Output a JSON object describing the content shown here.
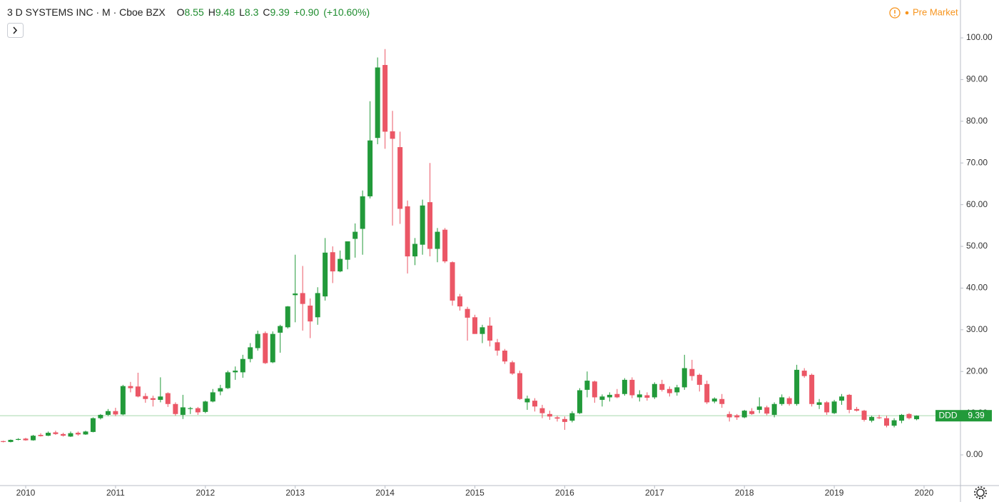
{
  "chart_data": {
    "type": "candlestick",
    "title": "3 D SYSTEMS INC · M · Cboe BZX",
    "ohlc_labels": [
      "O",
      "H",
      "L",
      "C"
    ],
    "change": "+0.90",
    "change_pct": "(+10.60%)",
    "session": "Pre Market",
    "symbol_label": "DDD",
    "up_color": "#229a3a",
    "down_color": "#eb5766",
    "last_line_color": "#a8d8ad",
    "x": [
      2009.75,
      2009.833,
      2009.917,
      2010,
      2010.083,
      2010.167,
      2010.25,
      2010.333,
      2010.417,
      2010.5,
      2010.583,
      2010.667,
      2010.75,
      2010.833,
      2010.917,
      2011,
      2011.083,
      2011.167,
      2011.25,
      2011.333,
      2011.417,
      2011.5,
      2011.583,
      2011.667,
      2011.75,
      2011.833,
      2011.917,
      2012,
      2012.083,
      2012.167,
      2012.25,
      2012.333,
      2012.417,
      2012.5,
      2012.583,
      2012.667,
      2012.75,
      2012.833,
      2012.917,
      2013,
      2013.083,
      2013.167,
      2013.25,
      2013.333,
      2013.417,
      2013.5,
      2013.583,
      2013.667,
      2013.75,
      2013.833,
      2013.917,
      2014,
      2014.083,
      2014.167,
      2014.25,
      2014.333,
      2014.417,
      2014.5,
      2014.583,
      2014.667,
      2014.75,
      2014.833,
      2014.917,
      2015,
      2015.083,
      2015.167,
      2015.25,
      2015.333,
      2015.417,
      2015.5,
      2015.583,
      2015.667,
      2015.75,
      2015.833,
      2015.917,
      2016,
      2016.083,
      2016.167,
      2016.25,
      2016.333,
      2016.417,
      2016.5,
      2016.583,
      2016.667,
      2016.75,
      2016.833,
      2016.917,
      2017,
      2017.083,
      2017.167,
      2017.25,
      2017.333,
      2017.417,
      2017.5,
      2017.583,
      2017.667,
      2017.75,
      2017.833,
      2017.917,
      2018,
      2018.083,
      2018.167,
      2018.25,
      2018.333,
      2018.417,
      2018.5,
      2018.583,
      2018.667,
      2018.75,
      2018.833,
      2018.917,
      2019,
      2019.083,
      2019.167,
      2019.25,
      2019.333,
      2019.417,
      2019.5,
      2019.583,
      2019.667,
      2019.75,
      2019.833,
      2019.917
    ],
    "open": [
      3.3,
      3.1,
      3.6,
      3.9,
      3.5,
      4.8,
      4.6,
      5.4,
      5.0,
      4.4,
      5.3,
      4.9,
      5.5,
      8.8,
      9.6,
      10.5,
      9.7,
      16.5,
      16.4,
      14.1,
      13.6,
      13.2,
      14.8,
      12.2,
      9.6,
      11.0,
      11.2,
      10.3,
      12.8,
      15.2,
      16.0,
      19.8,
      19.8,
      23.0,
      25.6,
      29.2,
      22.2,
      29.3,
      30.6,
      38.3,
      38.8,
      35.8,
      33.0,
      38.0,
      48.6,
      44.0,
      46.8,
      51.8,
      54.2,
      62.0,
      76.0,
      93.5,
      77.6,
      73.8,
      59.6,
      47.6,
      50.4,
      60.6,
      49.4,
      54.0,
      46.2,
      38.0,
      35.0,
      33.0,
      29.0,
      31.0,
      27.0,
      25.0,
      22.2,
      19.6,
      12.6,
      13.0,
      11.2,
      9.8,
      9.0,
      8.6,
      8.2,
      10.0,
      15.6,
      17.6,
      13.2,
      13.8,
      14.6,
      14.6,
      18.0,
      13.8,
      14.3,
      13.8,
      17.0,
      15.8,
      15.0,
      16.2,
      20.6,
      19.2,
      17.0,
      12.8,
      13.4,
      9.8,
      9.5,
      9.0,
      10.5,
      10.8,
      11.4,
      9.6,
      12.2,
      13.6,
      12.2,
      20.2,
      19.2,
      12.0,
      12.6,
      10.0,
      13.0,
      14.4,
      11.0,
      10.6,
      8.2,
      9.0,
      8.8,
      7.0,
      8.2,
      9.8,
      8.55
    ],
    "high": [
      3.4,
      3.7,
      4.0,
      4.1,
      4.8,
      5.2,
      5.6,
      5.8,
      5.3,
      5.6,
      5.6,
      5.8,
      9.0,
      9.8,
      11.0,
      11.3,
      16.8,
      17.5,
      19.7,
      14.8,
      14.2,
      18.6,
      15.0,
      12.6,
      14.4,
      11.5,
      11.5,
      13.0,
      15.8,
      16.8,
      20.2,
      21.2,
      24.0,
      26.8,
      29.8,
      29.6,
      29.6,
      31.2,
      35.7,
      48.0,
      45.3,
      37.5,
      40.2,
      52.0,
      50.0,
      49.0,
      51.2,
      55.5,
      63.4,
      84.8,
      95.3,
      97.3,
      82.5,
      77.5,
      61.0,
      52.0,
      61.2,
      70.0,
      54.4,
      54.4,
      46.4,
      38.6,
      35.5,
      33.6,
      31.2,
      33.0,
      27.8,
      25.4,
      22.6,
      20.2,
      14.2,
      13.6,
      12.0,
      10.6,
      9.4,
      9.2,
      10.5,
      16.0,
      20.0,
      17.8,
      14.5,
      15.0,
      15.8,
      18.4,
      18.6,
      15.5,
      15.0,
      17.4,
      18.0,
      16.4,
      16.8,
      24.0,
      22.8,
      19.5,
      17.8,
      13.8,
      14.6,
      10.4,
      9.8,
      10.8,
      11.2,
      13.8,
      11.8,
      12.6,
      14.5,
      14.0,
      21.6,
      20.8,
      19.5,
      13.4,
      12.9,
      13.2,
      14.6,
      14.6,
      11.5,
      10.8,
      9.4,
      9.6,
      9.4,
      8.8,
      9.8,
      10.0,
      9.48
    ],
    "low": [
      3.0,
      3.0,
      3.5,
      3.4,
      3.4,
      4.4,
      4.5,
      4.8,
      4.4,
      4.3,
      4.6,
      4.8,
      5.4,
      8.5,
      9.3,
      9.3,
      9.5,
      15.0,
      13.8,
      12.5,
      11.6,
      12.6,
      11.5,
      9.4,
      8.6,
      9.8,
      9.6,
      10.0,
      12.6,
      14.3,
      15.8,
      18.0,
      18.5,
      22.2,
      25.0,
      21.8,
      22.0,
      24.5,
      30.3,
      31.8,
      29.8,
      28.0,
      31.2,
      37.0,
      41.2,
      43.8,
      44.5,
      47.3,
      48.0,
      61.5,
      74.5,
      73.4,
      55.0,
      55.4,
      43.5,
      45.5,
      48.0,
      47.6,
      46.2,
      46.0,
      35.8,
      34.6,
      27.4,
      29.0,
      26.8,
      26.0,
      23.8,
      21.8,
      19.2,
      13.2,
      10.8,
      10.4,
      8.8,
      8.4,
      8.0,
      6.0,
      7.8,
      9.8,
      13.8,
      12.5,
      11.6,
      12.8,
      13.6,
      14.2,
      13.6,
      12.8,
      13.0,
      13.4,
      15.2,
      14.0,
      14.2,
      15.6,
      17.8,
      15.2,
      12.2,
      12.4,
      11.3,
      8.0,
      8.4,
      8.8,
      9.6,
      10.0,
      9.5,
      9.0,
      11.8,
      11.8,
      11.8,
      18.5,
      11.6,
      11.0,
      9.6,
      9.8,
      12.0,
      10.0,
      10.4,
      8.0,
      7.8,
      8.6,
      6.6,
      6.6,
      7.6,
      8.5,
      8.3
    ],
    "close": [
      3.1,
      3.6,
      3.8,
      3.5,
      4.6,
      4.5,
      5.3,
      5.0,
      4.6,
      5.2,
      4.9,
      5.6,
      8.8,
      9.6,
      10.5,
      9.7,
      16.5,
      16.0,
      14.0,
      13.4,
      13.2,
      14.0,
      12.2,
      9.8,
      11.4,
      11.2,
      10.2,
      12.8,
      15.0,
      16.0,
      19.8,
      20.2,
      23.0,
      25.8,
      29.0,
      22.0,
      29.0,
      30.9,
      35.6,
      38.7,
      36.2,
      32.0,
      38.8,
      48.5,
      44.0,
      47.0,
      51.2,
      53.5,
      62.0,
      75.4,
      92.9,
      77.5,
      75.8,
      59.0,
      47.6,
      50.6,
      59.8,
      49.4,
      53.5,
      46.4,
      37.0,
      35.6,
      32.9,
      29.0,
      30.6,
      27.4,
      25.0,
      22.4,
      19.5,
      13.4,
      13.5,
      11.6,
      10.0,
      9.2,
      8.7,
      7.9,
      10.0,
      15.5,
      17.8,
      13.8,
      14.0,
      14.4,
      13.8,
      18.0,
      14.3,
      14.5,
      13.7,
      17.0,
      15.6,
      14.8,
      16.2,
      20.8,
      18.9,
      16.8,
      12.6,
      13.5,
      12.2,
      9.0,
      9.0,
      10.6,
      9.8,
      11.6,
      9.9,
      12.2,
      13.8,
      12.2,
      20.4,
      18.9,
      12.2,
      12.6,
      10.2,
      12.8,
      14.0,
      10.8,
      10.6,
      8.4,
      9.1,
      8.8,
      7.0,
      8.3,
      9.6,
      8.8,
      9.39
    ],
    "xlim": [
      2009.714,
      2020.405
    ],
    "xticks": [
      2010,
      2011,
      2012,
      2013,
      2014,
      2015,
      2016,
      2017,
      2018,
      2019,
      2020
    ],
    "ylim": [
      -7.36,
      109.08
    ],
    "yticks": [
      {
        "value": 0,
        "label": "0.00"
      },
      {
        "value": 10,
        "label": "10.00"
      },
      {
        "value": 20,
        "label": "20.00"
      },
      {
        "value": 30,
        "label": "30.00"
      },
      {
        "value": 40,
        "label": "40.00"
      },
      {
        "value": 50,
        "label": "50.00"
      },
      {
        "value": 60,
        "label": "60.00"
      },
      {
        "value": 70,
        "label": "70.00"
      },
      {
        "value": 80,
        "label": "80.00"
      },
      {
        "value": 90,
        "label": "90.00"
      },
      {
        "value": 100,
        "label": "100.00"
      }
    ],
    "grid": false
  }
}
